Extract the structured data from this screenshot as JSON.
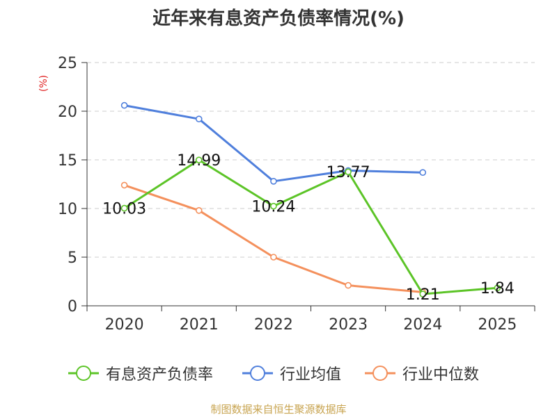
{
  "title": "近年来有息资产负债率情况(%)",
  "source": "制图数据来自恒生聚源数据库",
  "colors": {
    "有息资产负债率": "#5cc427",
    "行业均值": "#4f7fdc",
    "行业中位数": "#f4905c",
    "grid": "#cccccc",
    "axis": "#333333",
    "ylabel": "#e02020"
  },
  "chart_data": {
    "type": "line",
    "ylabel": "(%)",
    "ylim": [
      0,
      25
    ],
    "yticks": [
      0,
      5,
      10,
      15,
      20,
      25
    ],
    "grid": "horizontal dashed",
    "legend_position": "bottom",
    "categories": [
      "2020",
      "2021",
      "2022",
      "2023",
      "2024",
      "2025"
    ],
    "series": [
      {
        "name": "有息资产负债率",
        "values": [
          10.03,
          14.99,
          10.24,
          13.77,
          1.21,
          1.84
        ],
        "labels": [
          "10.03",
          "14.99",
          "10.24",
          "13.77",
          "1.21",
          "1.84"
        ]
      },
      {
        "name": "行业均值",
        "values": [
          20.6,
          19.2,
          12.8,
          13.9,
          13.7,
          null
        ]
      },
      {
        "name": "行业中位数",
        "values": [
          12.4,
          9.8,
          5.0,
          2.1,
          1.4,
          null
        ]
      }
    ]
  }
}
